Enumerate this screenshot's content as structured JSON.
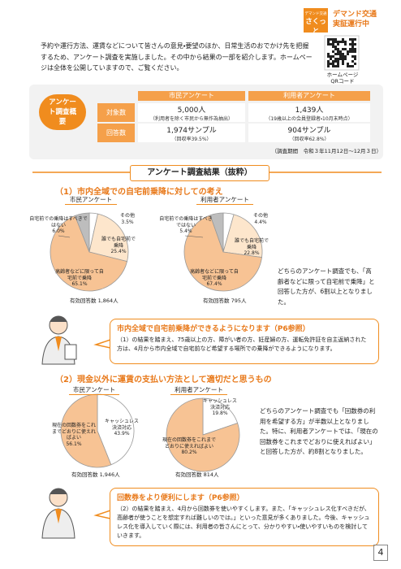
{
  "header": {
    "badge_top": "デマンド交通",
    "badge_main": "さくっと",
    "title": "デマンド交通",
    "subtitle": "実証運行中"
  },
  "intro": "予約や運行方法、運賃などについて皆さんの意見・要望のほか、日常生活のおでかけ先を把握するため、アンケート調査を実施しました。その中から結果の一部を紹介します。ホームページは全体を公開していますので、ご覧ください。",
  "qr_caption": [
    "ホームページ",
    "QRコード"
  ],
  "summary": {
    "label": "アンケート調査概要",
    "columns": [
      "市民アンケート",
      "利用者アンケート"
    ],
    "rows": [
      {
        "label": "対象数",
        "cells": [
          {
            "main": "5,000人",
            "sub": "（利用者を除く市民から無作為抽出）"
          },
          {
            "main": "1,439人",
            "sub": "（19歳以上の会員登録者・10月末時点）"
          }
        ]
      },
      {
        "label": "回答数",
        "cells": [
          {
            "main": "1,974サンプル",
            "sub": "（回収率39.5%）"
          },
          {
            "main": "904サンプル",
            "sub": "（回収率62.8%）"
          }
        ]
      }
    ],
    "note": "（調査期間　令和３年11月12日～12月３日）"
  },
  "section_title": "アンケート調査結果（抜粋）",
  "questions": [
    {
      "heading": "（1）市内全域での自宅前乗降に対しての考え",
      "note": "どちらのアンケート調査でも、「高齢者などに限って自宅前で乗降」と回答した方が、6割以上となりました。",
      "callout": {
        "title": "市内全域で自宅前乗降ができるようになります（P6参照）",
        "body": "（1）の結果を踏まえ、75歳以上の方、障がい者の方、妊産婦の方、運転免許証を自主返納された方は、4月から市内全域で自宅前など希望する場所での乗降ができるようになります。"
      }
    },
    {
      "heading": "（2）現金以外に運賃の支払い方法として適切だと思うもの",
      "note": "どちらのアンケート調査でも「回数券の利用を希望する方」が半数以上となりました。特に、利用者アンケートでは、「現在の回数券をこれまでどおりに使えればよい」と回答した方が、約8割となりました。",
      "callout": {
        "title": "回数券をより便利にします（P6参照）",
        "body": "（2）の結果を踏まえ、4月から回数券を使いやすくします。また、「キャッシュレス化すべきだが、高齢者が使うことを想定すれば難しいのでは。」といった意見が多くありました。今後、キャッシュレス化を導入していく際には、利用者の皆さんにとって、分かりやすい・使いやすいものを検討していきます。"
      }
    }
  ],
  "chart_data": [
    {
      "type": "pie",
      "title": "市民アンケート",
      "categories": [
        "その他",
        "誰でも自宅前で乗降",
        "高齢者などに限って自宅前で乗降",
        "自宅前での乗降はすべきではない"
      ],
      "values": [
        3.5,
        25.4,
        65.1,
        6.0
      ],
      "value_labels": [
        "3.5%",
        "25.4%",
        "65.1%",
        "6.0%"
      ],
      "colors": [
        "#ffffff",
        "#fde6cc",
        "#f7c394",
        "#bdbdbd"
      ],
      "footnote": "有効回答数 1,864人"
    },
    {
      "type": "pie",
      "title": "利用者アンケート",
      "categories": [
        "その他",
        "誰でも自宅前で乗降",
        "高齢者などに限って自宅前で乗降",
        "自宅前での乗降はすべきではない"
      ],
      "values": [
        4.4,
        22.8,
        67.4,
        5.4
      ],
      "value_labels": [
        "4.4%",
        "22.8%",
        "67.4%",
        "5.4%"
      ],
      "colors": [
        "#ffffff",
        "#fde6cc",
        "#f7c394",
        "#bdbdbd"
      ],
      "footnote": "有効回答数 795人"
    },
    {
      "type": "pie",
      "title": "市民アンケート",
      "categories": [
        "キャッシュレス決済対応",
        "現在の回数券をこれまでどおりに使えればよい"
      ],
      "values": [
        43.9,
        56.1
      ],
      "value_labels": [
        "43.9%",
        "56.1%"
      ],
      "colors": [
        "#ffffff",
        "#f7c394"
      ],
      "footnote": "有効回答数 1,946人"
    },
    {
      "type": "pie",
      "title": "利用者アンケート",
      "categories": [
        "キャッシュレス決済対応",
        "現在の回数券をこれまでどおりに使えればよい"
      ],
      "values": [
        19.8,
        80.2
      ],
      "value_labels": [
        "19.8%",
        "80.2%"
      ],
      "colors": [
        "#ffffff",
        "#f7c394"
      ],
      "footnote": "有効回答数 814人"
    }
  ],
  "page_number": "4"
}
